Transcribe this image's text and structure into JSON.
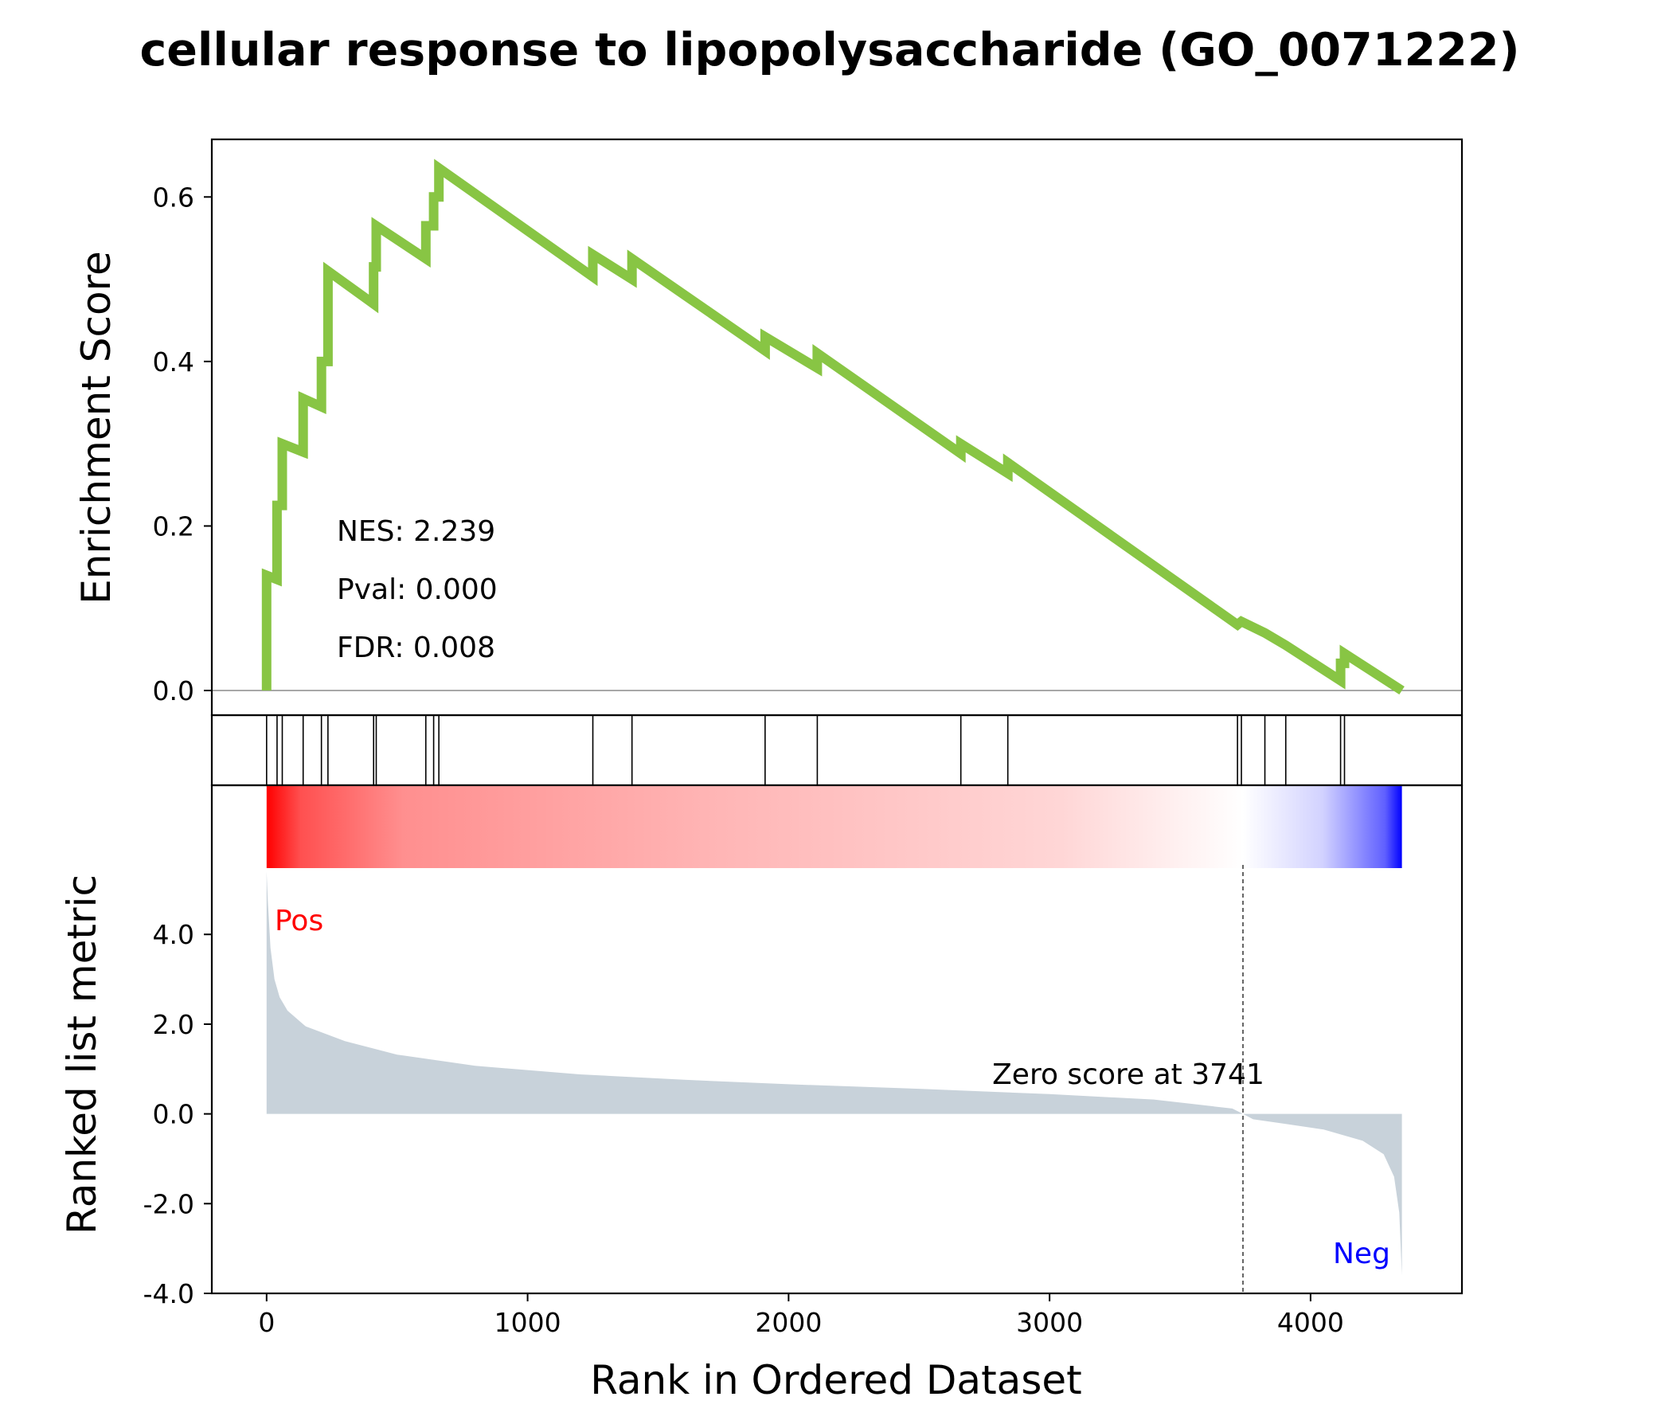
{
  "chart_data": {
    "type": "line",
    "title": "cellular response to lipopolysaccharide (GO_0071222)",
    "xlabel": "Rank in Ordered Dataset",
    "xlim": [
      -210,
      4580
    ],
    "xticks": [
      0,
      1000,
      2000,
      3000,
      4000
    ],
    "xtick_labels": [
      "0",
      "1000",
      "2000",
      "3000",
      "4000"
    ],
    "enrichment": {
      "ylabel": "Enrichment Score",
      "ylim": [
        -0.03,
        0.67
      ],
      "yticks": [
        0.0,
        0.2,
        0.4,
        0.6
      ],
      "ytick_labels": [
        "0.0",
        "0.2",
        "0.4",
        "0.6"
      ],
      "line_color": "#88c544",
      "zero_line_color": "#8c8c8c",
      "hits": [
        0,
        40,
        60,
        140,
        210,
        235,
        410,
        420,
        610,
        640,
        660,
        1250,
        1400,
        1910,
        2110,
        2660,
        2840,
        3720,
        3735,
        3825,
        3905,
        4115,
        4130
      ],
      "points": [
        [
          0,
          0.0
        ],
        [
          0,
          0.14
        ],
        [
          40,
          0.135
        ],
        [
          40,
          0.225
        ],
        [
          60,
          0.225
        ],
        [
          60,
          0.3
        ],
        [
          140,
          0.29
        ],
        [
          140,
          0.355
        ],
        [
          210,
          0.345
        ],
        [
          210,
          0.4
        ],
        [
          235,
          0.4
        ],
        [
          235,
          0.51
        ],
        [
          410,
          0.47
        ],
        [
          410,
          0.515
        ],
        [
          420,
          0.515
        ],
        [
          420,
          0.565
        ],
        [
          610,
          0.525
        ],
        [
          610,
          0.565
        ],
        [
          640,
          0.565
        ],
        [
          640,
          0.6
        ],
        [
          660,
          0.6
        ],
        [
          660,
          0.635
        ],
        [
          1250,
          0.503
        ],
        [
          1250,
          0.53
        ],
        [
          1400,
          0.5
        ],
        [
          1400,
          0.525
        ],
        [
          1910,
          0.413
        ],
        [
          1910,
          0.43
        ],
        [
          2110,
          0.392
        ],
        [
          2110,
          0.41
        ],
        [
          2660,
          0.288
        ],
        [
          2660,
          0.3
        ],
        [
          2840,
          0.264
        ],
        [
          2840,
          0.277
        ],
        [
          3720,
          0.08
        ],
        [
          3735,
          0.084
        ],
        [
          3825,
          0.07
        ],
        [
          3905,
          0.055
        ],
        [
          4115,
          0.012
        ],
        [
          4115,
          0.033
        ],
        [
          4130,
          0.033
        ],
        [
          4130,
          0.045
        ],
        [
          4350,
          0.0
        ]
      ],
      "stats": {
        "nes": "NES: 2.239",
        "pval": "Pval: 0.000",
        "fdr": "FDR: 0.008"
      }
    },
    "ranked_metric": {
      "ylabel": "Ranked list metric",
      "ylim": [
        -4.0,
        5.3
      ],
      "yticks": [
        -4.0,
        -2.0,
        0.0,
        2.0,
        4.0
      ],
      "ytick_labels": [
        "-4.0",
        "-2.0",
        "0.0",
        "2.0",
        "4.0"
      ],
      "fill_color": "#c8d2da",
      "n_genes": 4350,
      "profile": [
        [
          0,
          5.4
        ],
        [
          5,
          4.7
        ],
        [
          15,
          3.7
        ],
        [
          30,
          3.0
        ],
        [
          50,
          2.6
        ],
        [
          80,
          2.3
        ],
        [
          150,
          1.95
        ],
        [
          300,
          1.62
        ],
        [
          500,
          1.32
        ],
        [
          800,
          1.07
        ],
        [
          1200,
          0.88
        ],
        [
          1600,
          0.76
        ],
        [
          2000,
          0.66
        ],
        [
          2500,
          0.56
        ],
        [
          3000,
          0.44
        ],
        [
          3400,
          0.32
        ],
        [
          3700,
          0.12
        ],
        [
          3741,
          0.0
        ],
        [
          3780,
          -0.12
        ],
        [
          3900,
          -0.22
        ],
        [
          4050,
          -0.35
        ],
        [
          4200,
          -0.6
        ],
        [
          4280,
          -0.9
        ],
        [
          4320,
          -1.4
        ],
        [
          4340,
          -2.2
        ],
        [
          4350,
          -3.6
        ]
      ],
      "zero_cross": 3741,
      "zero_label": "Zero score at 3741",
      "pos_label": "Pos",
      "neg_label": "Neg",
      "pos_color": "#ff0000",
      "neg_color": "#0000ff"
    }
  }
}
